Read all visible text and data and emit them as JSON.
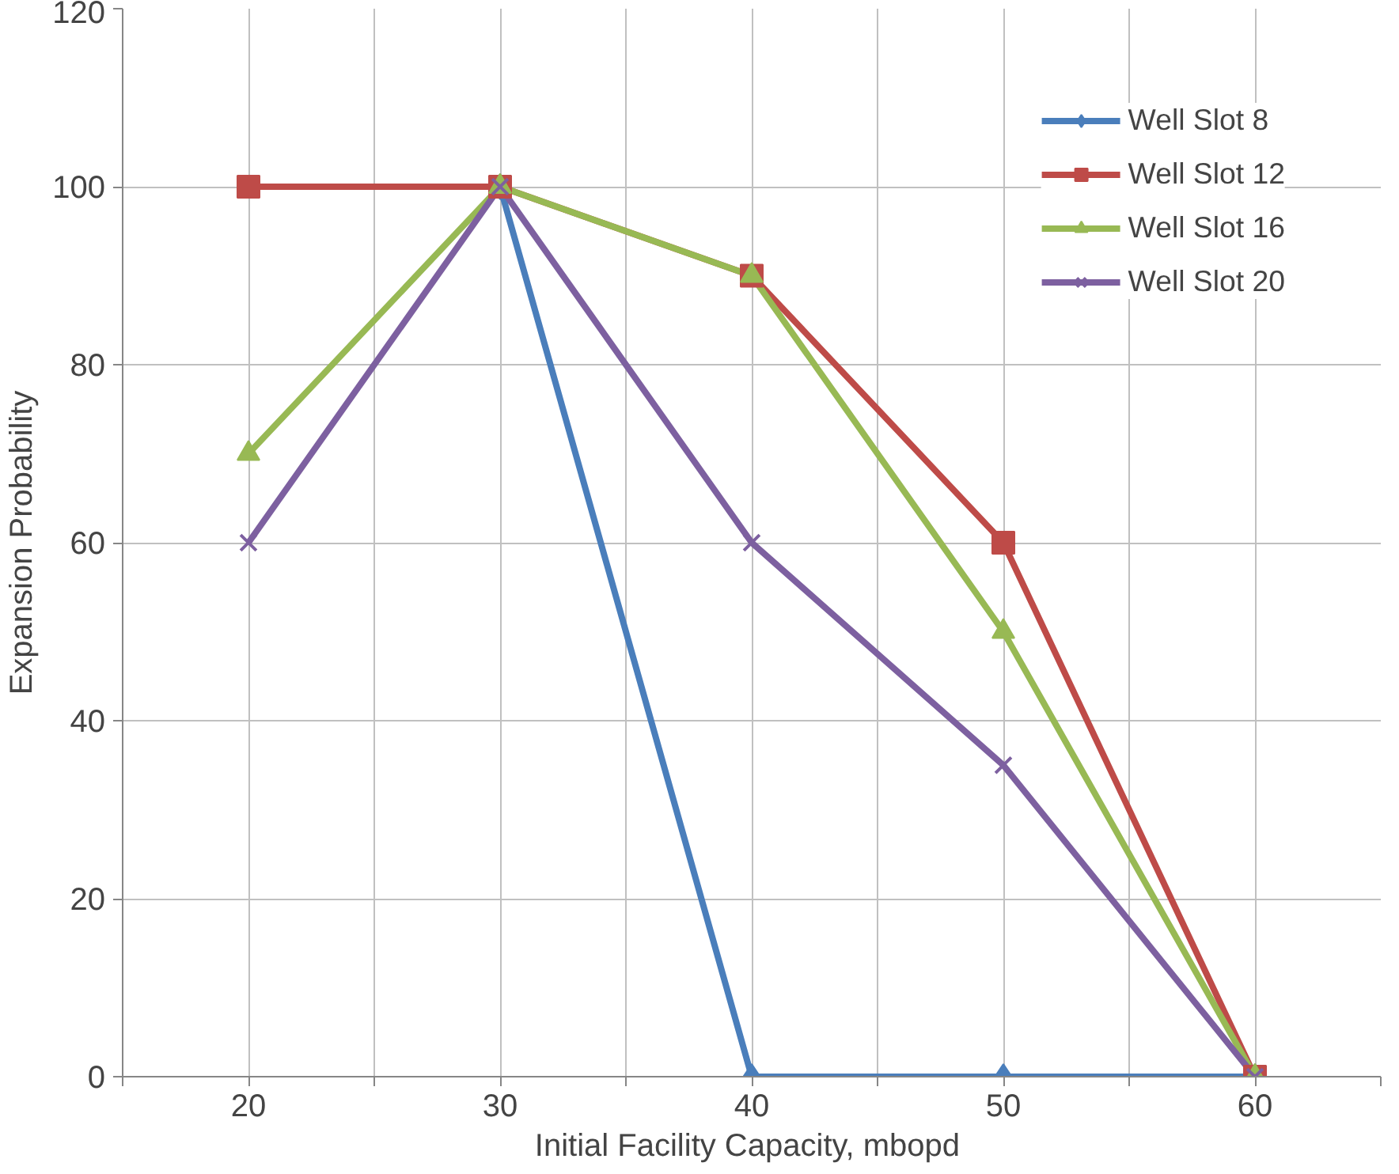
{
  "chart_data": {
    "type": "line",
    "xlabel": "Initial Facility Capacity,  mbopd",
    "ylabel": "Expansion Probability",
    "x": [
      20,
      30,
      40,
      50,
      60
    ],
    "xlim": [
      15,
      65
    ],
    "xticks": [
      {
        "value": 15,
        "label": null
      },
      20,
      {
        "value": 25,
        "label": null
      },
      30,
      {
        "value": 35,
        "label": null
      },
      40,
      {
        "value": 45,
        "label": null
      },
      50,
      {
        "value": 55,
        "label": null
      },
      60,
      {
        "value": 65,
        "label": null
      }
    ],
    "ylim": [
      0,
      120
    ],
    "yticks": [
      0,
      20,
      40,
      60,
      80,
      100,
      120
    ],
    "grid": true,
    "legend": "top right",
    "series": [
      {
        "name": "Well Slot 8",
        "color": "#4a7ebb",
        "marker": "diamond",
        "values": [
          null,
          100,
          0,
          0,
          0
        ]
      },
      {
        "name": "Well Slot 12",
        "color": "#be4b48",
        "marker": "square",
        "values": [
          100,
          100,
          90,
          60,
          0
        ]
      },
      {
        "name": "Well Slot 16",
        "color": "#98b954",
        "marker": "triangle",
        "values": [
          70,
          100,
          90,
          50,
          0
        ]
      },
      {
        "name": "Well Slot 20",
        "color": "#7d60a0",
        "marker": "cross",
        "values": [
          60,
          100,
          60,
          35,
          0
        ]
      }
    ]
  }
}
